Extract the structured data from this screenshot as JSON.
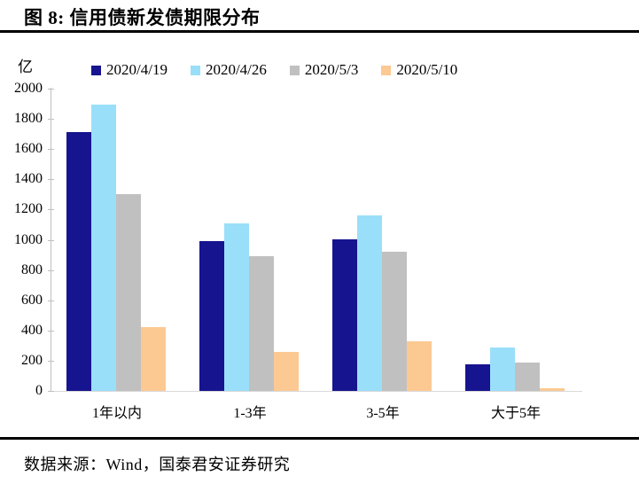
{
  "figure": {
    "title": "图 8: 信用债新发债期限分布",
    "source": "数据来源：Wind，国泰君安证券研究"
  },
  "chart_data": {
    "type": "bar",
    "title": "信用债新发债期限分布",
    "unit_label": "亿",
    "categories": [
      "1年以内",
      "1-3年",
      "3-5年",
      "大于5年"
    ],
    "series": [
      {
        "name": "2020/4/19",
        "color": "#17148f",
        "values": [
          1710,
          990,
          1000,
          175
        ]
      },
      {
        "name": "2020/4/26",
        "color": "#9adff9",
        "values": [
          1895,
          1110,
          1160,
          290
        ]
      },
      {
        "name": "2020/5/3",
        "color": "#c0c0c0",
        "values": [
          1300,
          890,
          920,
          190
        ]
      },
      {
        "name": "2020/5/10",
        "color": "#fcc993",
        "values": [
          420,
          260,
          330,
          20
        ]
      }
    ],
    "ylim": [
      0,
      2000
    ],
    "ytick_step": 200,
    "grid": false,
    "legend_position": "top",
    "axis_color": "#bfbfbf",
    "baseline_color": "#d9d9d9"
  }
}
